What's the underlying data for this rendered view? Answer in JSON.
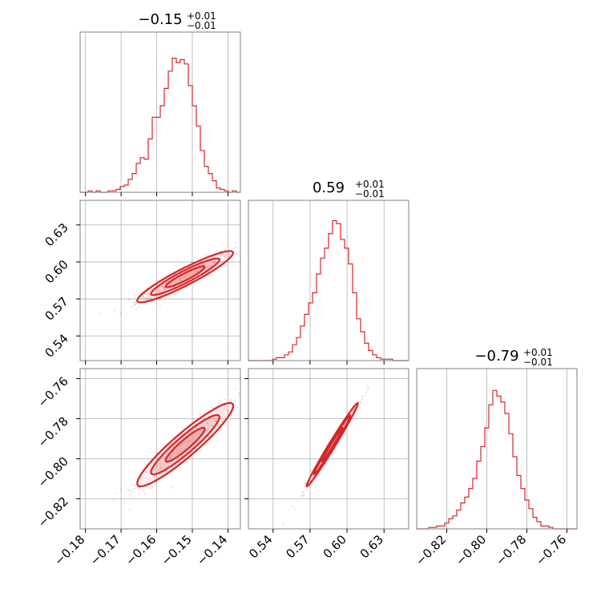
{
  "colors": {
    "accent": "#d62728",
    "fill": "#e8a0a0",
    "grid": "#b0b0b0",
    "frame": "#808080"
  },
  "chart_data": {
    "type": "corner",
    "parameters": [
      {
        "title_main": "−0.15",
        "title_sup": "+0.01",
        "title_sub": "−0.01",
        "range": [
          -0.1815,
          -0.1365
        ],
        "ticks": [
          -0.18,
          -0.17,
          -0.16,
          -0.15,
          -0.14
        ],
        "tick_labels": [
          "−0.18",
          "−0.17",
          "−0.16",
          "−0.15",
          "−0.14"
        ],
        "hist": [
          0,
          0,
          0.01,
          0,
          0.01,
          0,
          0,
          0.01,
          0.01,
          0.02,
          0.04,
          0.05,
          0.09,
          0.13,
          0.2,
          0.24,
          0.23,
          0.37,
          0.52,
          0.52,
          0.6,
          0.72,
          0.84,
          0.93,
          0.9,
          0.92,
          0.89,
          0.74,
          0.6,
          0.46,
          0.29,
          0.18,
          0.13,
          0.08,
          0.03,
          0.02,
          0.01,
          0,
          0.01,
          0
        ]
      },
      {
        "title_main": "0.59",
        "title_sup": "+0.01",
        "title_sub": "−0.01",
        "range": [
          0.52,
          0.65
        ],
        "ticks": [
          0.54,
          0.57,
          0.6,
          0.63
        ],
        "tick_labels": [
          "0.54",
          "0.57",
          "0.60",
          "0.63"
        ],
        "hist": [
          0,
          0,
          0,
          0,
          0,
          0,
          0.01,
          0.02,
          0.02,
          0.04,
          0.06,
          0.11,
          0.16,
          0.24,
          0.32,
          0.4,
          0.47,
          0.6,
          0.71,
          0.78,
          0.88,
          0.97,
          0.95,
          0.84,
          0.78,
          0.67,
          0.47,
          0.29,
          0.2,
          0.12,
          0.07,
          0.04,
          0.02,
          0.01,
          0.01,
          0.01,
          0,
          0,
          0,
          0
        ]
      },
      {
        "title_main": "−0.79",
        "title_sup": "+0.01",
        "title_sub": "−0.01",
        "range": [
          -0.835,
          -0.755
        ],
        "ticks": [
          -0.82,
          -0.8,
          -0.78,
          -0.76
        ],
        "tick_labels": [
          "−0.82",
          "−0.80",
          "−0.78",
          "−0.76"
        ],
        "hist": [
          0,
          0,
          0,
          0.01,
          0.01,
          0.02,
          0.02,
          0.04,
          0.07,
          0.09,
          0.13,
          0.18,
          0.22,
          0.28,
          0.35,
          0.47,
          0.57,
          0.7,
          0.86,
          0.96,
          0.92,
          0.88,
          0.8,
          0.66,
          0.5,
          0.37,
          0.28,
          0.2,
          0.14,
          0.08,
          0.05,
          0.02,
          0.02,
          0.01,
          0,
          0,
          0,
          0,
          0,
          0
        ]
      }
    ],
    "correlations": {
      "0-1": 0.93,
      "0-2": 0.93,
      "1-2": 0.99
    },
    "centers": [
      -0.152,
      0.588,
      -0.793
    ],
    "sigmas": [
      0.0055,
      0.0085,
      0.0085
    ],
    "grid": true
  }
}
